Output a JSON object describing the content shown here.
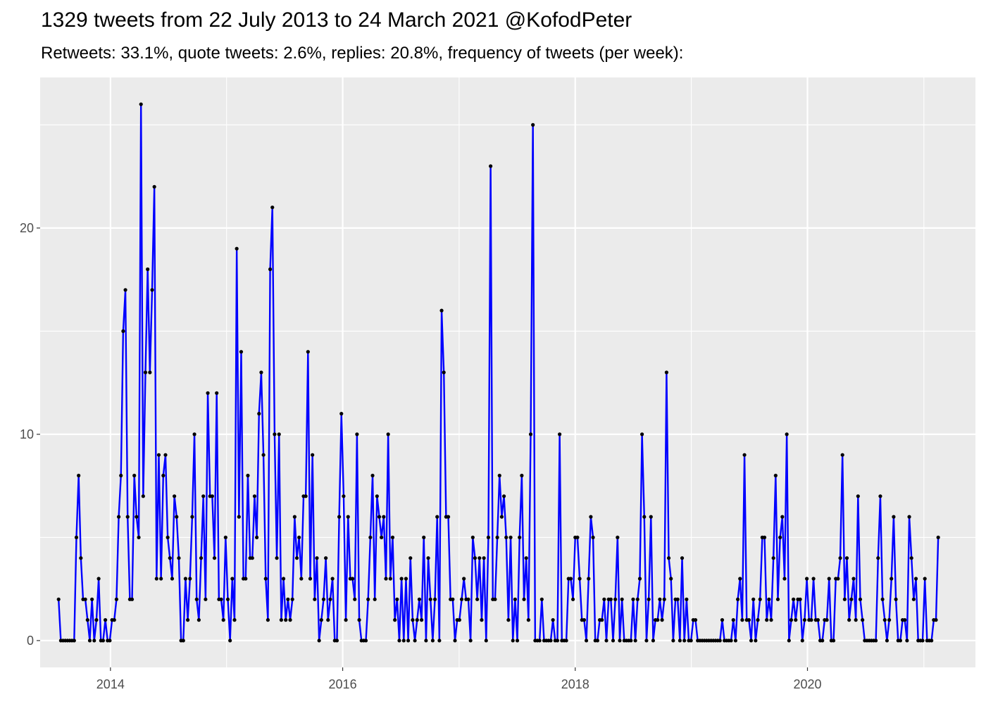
{
  "chart_data": {
    "type": "line",
    "title": "1329 tweets from 22 July 2013 to 24 March 2021 @KofodPeter",
    "subtitle": "Retweets: 33.1%, quote tweets: 2.6%, replies: 20.8%, frequency of tweets (per week):",
    "xlabel": "",
    "ylabel": "",
    "x_ticks": [
      "2014",
      "2016",
      "2018",
      "2020"
    ],
    "y_ticks": [
      "0",
      "10",
      "20"
    ],
    "xlim": [
      "2013-05-25",
      "2021-06-12"
    ],
    "ylim": [
      -1.3,
      27.3
    ],
    "grid": true,
    "legend": "none",
    "line_color": "#0000ff",
    "point_color": "#000000",
    "panel_color": "#ebebeb",
    "series": [
      {
        "start_date": "2013-07-22",
        "step_days": 7,
        "values": [
          2,
          0,
          0,
          0,
          0,
          0,
          0,
          0,
          5,
          8,
          4,
          2,
          2,
          1,
          0,
          2,
          0,
          1,
          3,
          0,
          0,
          1,
          0,
          0,
          1,
          1,
          2,
          6,
          8,
          15,
          17,
          6,
          2,
          2,
          8,
          6,
          5,
          26,
          7,
          13,
          18,
          13,
          17,
          22,
          3,
          9,
          3,
          8,
          9,
          5,
          4,
          3,
          7,
          6,
          4,
          0,
          0,
          3,
          1,
          3,
          6,
          10,
          2,
          1,
          4,
          7,
          2,
          12,
          7,
          7,
          4,
          12,
          2,
          2,
          1,
          5,
          2,
          0,
          3,
          1,
          19,
          6,
          14,
          3,
          3,
          8,
          4,
          4,
          7,
          5,
          11,
          13,
          9,
          3,
          1,
          18,
          21,
          10,
          4,
          10,
          1,
          3,
          1,
          2,
          1,
          2,
          6,
          4,
          5,
          3,
          7,
          7,
          14,
          3,
          9,
          2,
          4,
          0,
          1,
          2,
          4,
          1,
          2,
          3,
          0,
          0,
          6,
          11,
          7,
          1,
          6,
          3,
          3,
          2,
          10,
          1,
          0,
          0,
          0,
          2,
          5,
          8,
          2,
          7,
          6,
          5,
          6,
          3,
          10,
          3,
          5,
          1,
          2,
          0,
          3,
          0,
          3,
          0,
          4,
          1,
          0,
          1,
          2,
          1,
          5,
          0,
          4,
          2,
          0,
          2,
          6,
          0,
          16,
          13,
          6,
          6,
          2,
          2,
          0,
          1,
          1,
          2,
          3,
          2,
          2,
          0,
          5,
          4,
          2,
          4,
          1,
          4,
          0,
          5,
          23,
          2,
          2,
          5,
          8,
          6,
          7,
          5,
          1,
          5,
          0,
          2,
          0,
          5,
          8,
          2,
          4,
          1,
          10,
          25,
          0,
          0,
          0,
          2,
          0,
          0,
          0,
          0,
          1,
          0,
          0,
          10,
          0,
          0,
          0,
          3,
          3,
          2,
          5,
          5,
          3,
          1,
          1,
          0,
          3,
          6,
          5,
          0,
          0,
          1,
          1,
          2,
          0,
          2,
          2,
          0,
          2,
          5,
          0,
          2,
          0,
          0,
          0,
          0,
          2,
          0,
          2,
          3,
          10,
          6,
          0,
          2,
          6,
          0,
          1,
          1,
          2,
          1,
          2,
          13,
          4,
          3,
          0,
          2,
          2,
          0,
          4,
          0,
          2,
          0,
          0,
          1,
          1,
          0,
          0,
          0,
          0,
          0,
          0,
          0,
          0,
          0,
          0,
          0,
          1,
          0,
          0,
          0,
          0,
          1,
          0,
          2,
          3,
          1,
          9,
          1,
          1,
          0,
          2,
          0,
          1,
          2,
          5,
          5,
          1,
          2,
          1,
          4,
          8,
          2,
          5,
          6,
          3,
          10,
          0,
          1,
          2,
          1,
          2,
          2,
          0,
          1,
          3,
          1,
          1,
          3,
          1,
          1,
          0,
          0,
          1,
          1,
          3,
          0,
          0,
          3,
          3,
          4,
          9,
          2,
          4,
          1,
          2,
          3,
          1,
          7,
          2,
          1,
          0,
          0,
          0,
          0,
          0,
          0,
          4,
          7,
          2,
          1,
          0,
          1,
          3,
          6,
          2,
          0,
          0,
          1,
          1,
          0,
          6,
          4,
          2,
          3,
          0,
          0,
          0,
          3,
          0,
          0,
          0,
          1,
          1,
          5
        ]
      }
    ]
  }
}
